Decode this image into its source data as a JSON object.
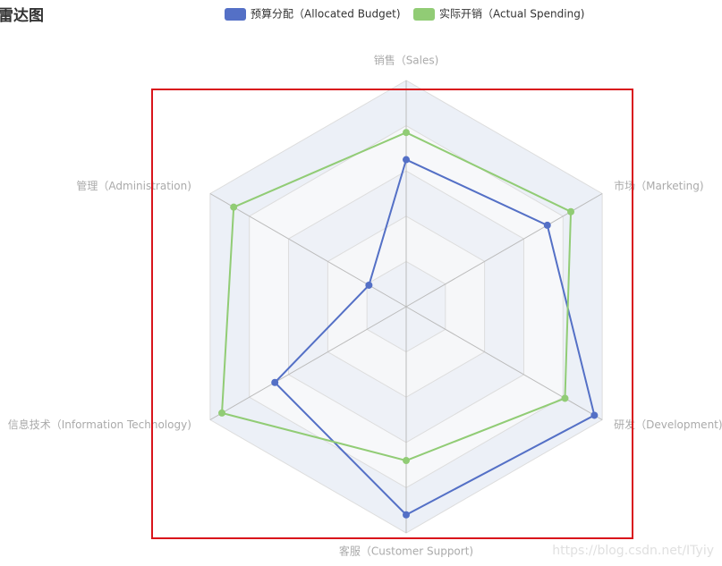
{
  "chart_data": {
    "type": "radar",
    "title": "雷达图",
    "indicators": [
      "销售（Sales)",
      "管理（Administration)",
      "信息技术（Information Technology)",
      "客服（Customer Support)",
      "研发（Development)",
      "市场（Marketing)"
    ],
    "rlim": [
      0,
      100
    ],
    "rticks": [
      20,
      40,
      60,
      80,
      100
    ],
    "series": [
      {
        "name": "预算分配（Allocated Budget)",
        "color": "#5470c6",
        "values": [
          65,
          19,
          67,
          92,
          96,
          72
        ]
      },
      {
        "name": "实际开销（Actual Spending)",
        "color": "#91cc75",
        "values": [
          77,
          88,
          94,
          68,
          81,
          84
        ]
      }
    ],
    "watermark": "https://blog.csdn.net/ITyiy"
  }
}
